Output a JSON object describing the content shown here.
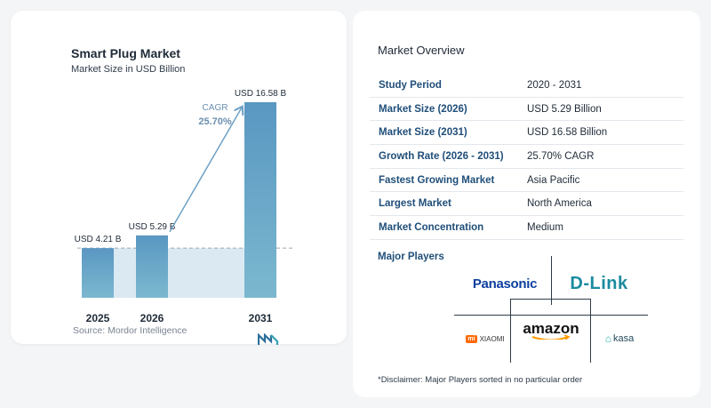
{
  "left": {
    "title": "Smart Plug Market",
    "subtitle": "Market Size in USD Billion",
    "source": "Source:  Mordor Intelligence"
  },
  "chart_data": {
    "type": "bar",
    "categories": [
      "2025",
      "2026",
      "2031"
    ],
    "values": [
      4.21,
      5.29,
      16.58
    ],
    "value_labels": [
      "USD 4.21 B",
      "USD 5.29 B",
      "USD 16.58 B"
    ],
    "cagr_label": "CAGR",
    "cagr_value": "25.70%",
    "title": "Smart Plug Market",
    "subtitle": "Market Size in USD Billion",
    "ylim": [
      0,
      16.58
    ],
    "grid": false,
    "bar_color": "#5a97c2",
    "bar_color_end": "#7bb8cf",
    "band_color": "#dbe9f3"
  },
  "overview": {
    "title": "Market Overview",
    "rows": [
      {
        "label": "Study Period",
        "value": "2020 - 2031"
      },
      {
        "label": "Market Size (2026)",
        "value": "USD 5.29 Billion"
      },
      {
        "label": "Market Size (2031)",
        "value": "USD 16.58 Billion"
      },
      {
        "label": "Growth Rate (2026 - 2031)",
        "value": "25.70% CAGR"
      },
      {
        "label": "Fastest Growing Market",
        "value": "Asia Pacific"
      },
      {
        "label": "Largest Market",
        "value": "North America"
      },
      {
        "label": "Market Concentration",
        "value": "Medium"
      }
    ],
    "players_title": "Major Players",
    "players": {
      "panasonic": "Panasonic",
      "dlink": "D-Link",
      "amazon": "amazon",
      "xiaomi": "XIAOMI",
      "xiaomi_mark": "mi",
      "kasa": "kasa"
    },
    "disclaimer": "*Disclaimer: Major Players sorted in no particular order"
  }
}
